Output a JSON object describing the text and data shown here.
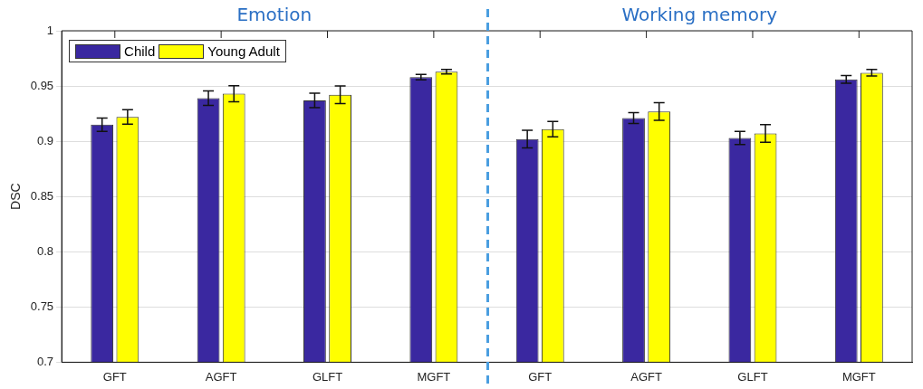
{
  "chart_data": {
    "type": "bar",
    "categories": [
      "GFT",
      "AGFT",
      "GLFT",
      "MGFT",
      "GFT",
      "AGFT",
      "GLFT",
      "MGFT"
    ],
    "series": [
      {
        "name": "Child",
        "color": "#3a28a0",
        "values": [
          0.915,
          0.939,
          0.937,
          0.958,
          0.902,
          0.921,
          0.903,
          0.956
        ],
        "errors": [
          0.006,
          0.0066,
          0.0066,
          0.0024,
          0.008,
          0.005,
          0.006,
          0.0035
        ]
      },
      {
        "name": "Young Adult",
        "color": "#ffff00",
        "values": [
          0.922,
          0.943,
          0.942,
          0.963,
          0.911,
          0.927,
          0.907,
          0.962
        ],
        "errors": [
          0.0066,
          0.0073,
          0.008,
          0.002,
          0.007,
          0.008,
          0.008,
          0.003
        ]
      }
    ],
    "ylabel": "DSC",
    "ylim": [
      0.7,
      1
    ],
    "yticks": [
      0.7,
      0.75,
      0.8,
      0.85,
      0.9,
      0.95,
      1
    ],
    "annotations": [
      "Emotion",
      "Working memory"
    ],
    "grid": "y",
    "legend": "top left"
  }
}
